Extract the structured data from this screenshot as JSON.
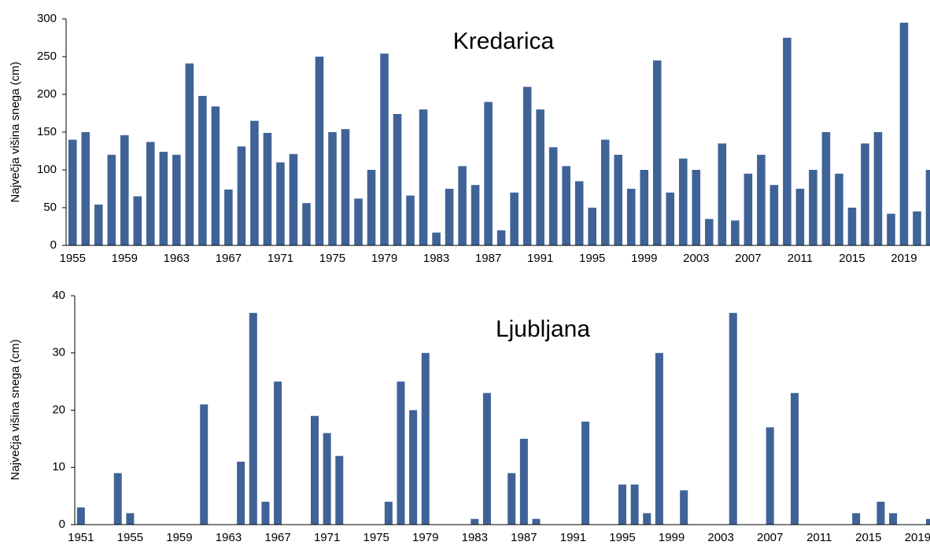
{
  "chart_data": [
    {
      "type": "bar",
      "title": "Kredarica",
      "y_label": "Največja višina snega (cm)",
      "color": "#3f6397",
      "categories": [
        "1955",
        null,
        null,
        null,
        "1959",
        null,
        null,
        null,
        "1963",
        null,
        null,
        null,
        "1967",
        null,
        null,
        null,
        "1971",
        null,
        null,
        null,
        "1975",
        null,
        null,
        null,
        "1979",
        null,
        null,
        null,
        "1983",
        null,
        null,
        null,
        "1987",
        null,
        null,
        null,
        "1991",
        null,
        null,
        null,
        "1995",
        null,
        null,
        null,
        "1999",
        null,
        null,
        null,
        "2003",
        null,
        null,
        null,
        "2007",
        null,
        null,
        null,
        "2011",
        null,
        null,
        null,
        "2015",
        null,
        null,
        null,
        "2019",
        null,
        null
      ],
      "values": [
        140,
        150,
        54,
        120,
        146,
        65,
        137,
        124,
        120,
        241,
        198,
        184,
        74,
        131,
        165,
        149,
        110,
        121,
        56,
        250,
        150,
        154,
        62,
        100,
        254,
        174,
        66,
        180,
        17,
        75,
        105,
        80,
        190,
        20,
        70,
        210,
        180,
        130,
        105,
        85,
        50,
        140,
        120,
        75,
        100,
        245,
        70,
        115,
        100,
        35,
        135,
        33,
        95,
        120,
        80,
        275,
        75,
        100,
        150,
        95,
        50,
        135,
        150,
        42,
        295,
        45,
        100
      ],
      "ylim": [
        0,
        300
      ],
      "yticks": [
        0,
        50,
        100,
        150,
        200,
        250,
        300
      ]
    },
    {
      "type": "bar",
      "title": "Ljubljana",
      "y_label": "Največja višina snega (cm)",
      "color": "#3f6397",
      "categories": [
        "1951",
        null,
        null,
        null,
        "1955",
        null,
        null,
        null,
        "1959",
        null,
        null,
        null,
        "1963",
        null,
        null,
        null,
        "1967",
        null,
        null,
        null,
        "1971",
        null,
        null,
        null,
        "1975",
        null,
        null,
        null,
        "1979",
        null,
        null,
        null,
        "1983",
        null,
        null,
        null,
        "1987",
        null,
        null,
        null,
        "1991",
        null,
        null,
        null,
        "1995",
        null,
        null,
        null,
        "1999",
        null,
        null,
        null,
        "2003",
        null,
        null,
        null,
        "2007",
        null,
        null,
        null,
        "2011",
        null,
        null,
        null,
        "2015",
        null,
        null,
        null,
        "2019",
        null
      ],
      "values": [
        3,
        0,
        0,
        9,
        2,
        0,
        0,
        0,
        0,
        0,
        21,
        0,
        0,
        11,
        37,
        4,
        25,
        0,
        0,
        19,
        16,
        12,
        0,
        0,
        0,
        4,
        25,
        20,
        30,
        0,
        0,
        0,
        1,
        23,
        0,
        9,
        15,
        1,
        0,
        0,
        0,
        18,
        0,
        0,
        7,
        7,
        2,
        30,
        0,
        6,
        0,
        0,
        0,
        37,
        0,
        0,
        17,
        0,
        23,
        0,
        0,
        0,
        0,
        2,
        0,
        4,
        2,
        0,
        0,
        1
      ],
      "ylim": [
        0,
        40
      ],
      "yticks": [
        0,
        10,
        20,
        30,
        40
      ]
    }
  ]
}
